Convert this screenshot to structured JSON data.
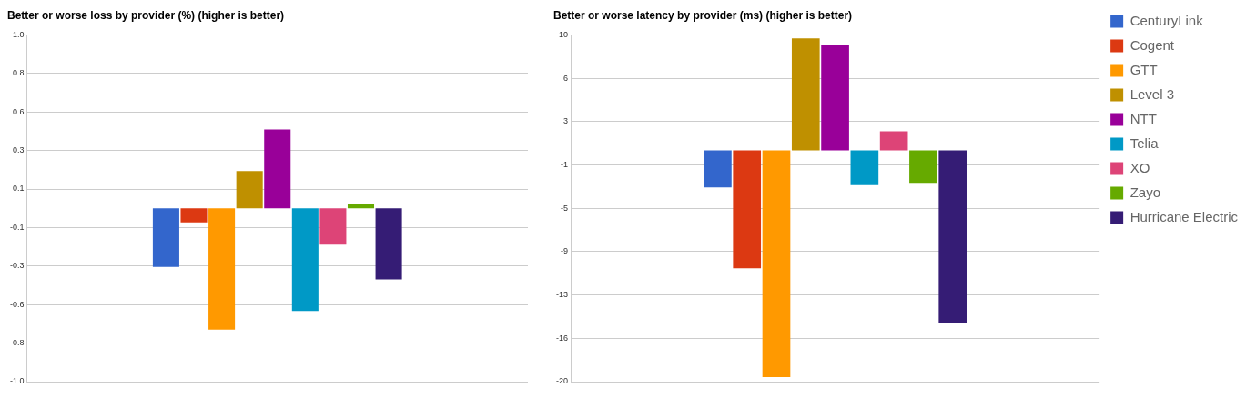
{
  "chart_data": [
    {
      "type": "bar",
      "title": "Better or worse loss by provider (%) (higher is better)",
      "categories": [
        null
      ],
      "series": [
        {
          "name": "CenturyLink",
          "color": "#3366cc",
          "values": [
            -0.338
          ]
        },
        {
          "name": "Cogent",
          "color": "#dc3912",
          "values": [
            -0.082
          ]
        },
        {
          "name": "GTT",
          "color": "#ff9900",
          "values": [
            -0.7
          ]
        },
        {
          "name": "Level 3",
          "color": "#bf9000",
          "values": [
            0.215
          ]
        },
        {
          "name": "NTT",
          "color": "#990099",
          "values": [
            0.455
          ]
        },
        {
          "name": "Telia",
          "color": "#0099c6",
          "values": [
            -0.593
          ]
        },
        {
          "name": "XO",
          "color": "#dd4477",
          "values": [
            -0.21
          ]
        },
        {
          "name": "Zayo",
          "color": "#66aa00",
          "values": [
            0.026
          ]
        },
        {
          "name": "Hurricane Electric",
          "color": "#351c75",
          "values": [
            -0.41
          ]
        }
      ],
      "ylim": [
        -1,
        1
      ],
      "yticks": [
        {
          "value": 1,
          "label": "1.0"
        },
        {
          "value": 0.7778,
          "label": "0.8"
        },
        {
          "value": 0.5556,
          "label": "0.6"
        },
        {
          "value": 0.3333,
          "label": "0.3"
        },
        {
          "value": 0.1111,
          "label": "0.1"
        },
        {
          "value": -0.1111,
          "label": "-0.1"
        },
        {
          "value": -0.3333,
          "label": "-0.3"
        },
        {
          "value": -0.5556,
          "label": "-0.6"
        },
        {
          "value": -0.7778,
          "label": "-0.8"
        },
        {
          "value": -1,
          "label": "-1.0"
        }
      ],
      "grid": true
    },
    {
      "type": "bar",
      "title": "Better or worse latency by provider (ms) (higher is better)",
      "categories": [
        null
      ],
      "series": [
        {
          "name": "CenturyLink",
          "color": "#3366cc",
          "values": [
            -3.2
          ]
        },
        {
          "name": "Cogent",
          "color": "#dc3912",
          "values": [
            -10.2
          ]
        },
        {
          "name": "GTT",
          "color": "#ff9900",
          "values": [
            -19.6
          ]
        },
        {
          "name": "Level 3",
          "color": "#bf9000",
          "values": [
            9.7
          ]
        },
        {
          "name": "NTT",
          "color": "#990099",
          "values": [
            9.1
          ]
        },
        {
          "name": "Telia",
          "color": "#0099c6",
          "values": [
            -3.0
          ]
        },
        {
          "name": "XO",
          "color": "#dd4477",
          "values": [
            1.65
          ]
        },
        {
          "name": "Zayo",
          "color": "#66aa00",
          "values": [
            -2.8
          ]
        },
        {
          "name": "Hurricane Electric",
          "color": "#351c75",
          "values": [
            -14.9
          ]
        }
      ],
      "ylim": [
        -20,
        10
      ],
      "yticks": [
        10,
        {
          "value": 6.25,
          "label": "6"
        },
        {
          "value": 2.5,
          "label": "3"
        },
        {
          "value": -1.25,
          "label": "-1"
        },
        -5,
        {
          "value": -8.75,
          "label": "-9"
        },
        {
          "value": -12.5,
          "label": "-13"
        },
        {
          "value": -16.25,
          "label": "-16"
        },
        -20
      ],
      "grid": true,
      "legend": "right"
    }
  ]
}
